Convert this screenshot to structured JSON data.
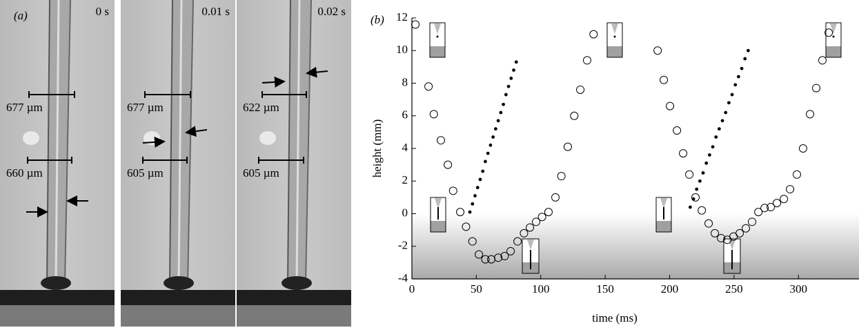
{
  "panel_a": {
    "label": "(a)",
    "frames": [
      {
        "time": "0 s",
        "widths": [
          "677 µm",
          "660 µm"
        ]
      },
      {
        "time": "0.01 s",
        "widths": [
          "677 µm",
          "605 µm"
        ]
      },
      {
        "time": "0.02 s",
        "widths": [
          "622 µm",
          "605 µm"
        ]
      }
    ]
  },
  "chart_data": {
    "type": "scatter",
    "panel_label": "(b)",
    "x_label": "time (ms)",
    "y_label": "height (mm)",
    "xlim": [
      0,
      347
    ],
    "ylim": [
      -4,
      12
    ],
    "xticks": [
      0,
      50,
      100,
      150,
      200,
      250,
      300
    ],
    "yticks": [
      -4,
      -2,
      0,
      2,
      4,
      6,
      8,
      10,
      12
    ],
    "series": [
      {
        "color": "#000000",
        "marker": "open",
        "x": [
          2.7,
          12.9,
          17,
          22.5,
          27.9,
          32,
          37.5,
          42,
          47,
          52,
          57,
          61.6,
          67,
          72,
          76.6,
          82,
          87,
          91.6,
          96.4,
          101,
          106,
          111.4,
          116,
          121,
          126,
          130.7,
          136,
          141,
          190.7,
          195.5,
          200.3,
          205.7,
          210.5,
          215.3,
          220.1,
          225,
          230.3,
          235.1,
          240,
          244.8,
          249.6,
          254.4,
          259.2,
          264,
          268.9,
          273.7,
          278.5,
          283.3,
          288.7,
          293.5,
          298.8,
          303.6,
          309,
          313.8,
          318.6,
          323.5
        ],
        "values": [
          11.6,
          7.8,
          6.1,
          4.5,
          3.0,
          1.4,
          0.1,
          -0.8,
          -1.7,
          -2.5,
          -2.8,
          -2.8,
          -2.7,
          -2.6,
          -2.3,
          -1.7,
          -1.2,
          -0.85,
          -0.5,
          -0.2,
          0.1,
          1.0,
          2.3,
          4.1,
          6.0,
          7.6,
          9.4,
          11.0,
          10.0,
          8.2,
          6.6,
          5.1,
          3.7,
          2.4,
          1.0,
          0.2,
          -0.6,
          -1.2,
          -1.5,
          -1.6,
          -1.4,
          -1.2,
          -0.9,
          -0.5,
          0.1,
          0.35,
          0.4,
          0.65,
          0.9,
          1.5,
          2.4,
          4.0,
          6.1,
          7.7,
          9.4,
          11.1
        ]
      },
      {
        "color": "#000000",
        "marker": "filled",
        "x": [
          45,
          47,
          49,
          51,
          53,
          55,
          57,
          59,
          61,
          63,
          65,
          67,
          69,
          71,
          73,
          75,
          77,
          79,
          81,
          216,
          218.5,
          221,
          223.5,
          226,
          228.5,
          231,
          233.5,
          236,
          238.5,
          241,
          243.5,
          246,
          248.5,
          251,
          253.5,
          256,
          258.5,
          261
        ],
        "values": [
          0.1,
          0.6,
          1.1,
          1.6,
          2.1,
          2.6,
          3.2,
          3.7,
          4.2,
          4.7,
          5.2,
          5.7,
          6.2,
          6.7,
          7.3,
          7.8,
          8.3,
          8.8,
          9.3,
          0.4,
          0.9,
          1.5,
          2.0,
          2.5,
          3.1,
          3.6,
          4.1,
          4.7,
          5.2,
          5.7,
          6.2,
          6.8,
          7.3,
          7.9,
          8.4,
          8.9,
          9.5,
          10.0
        ]
      }
    ]
  }
}
